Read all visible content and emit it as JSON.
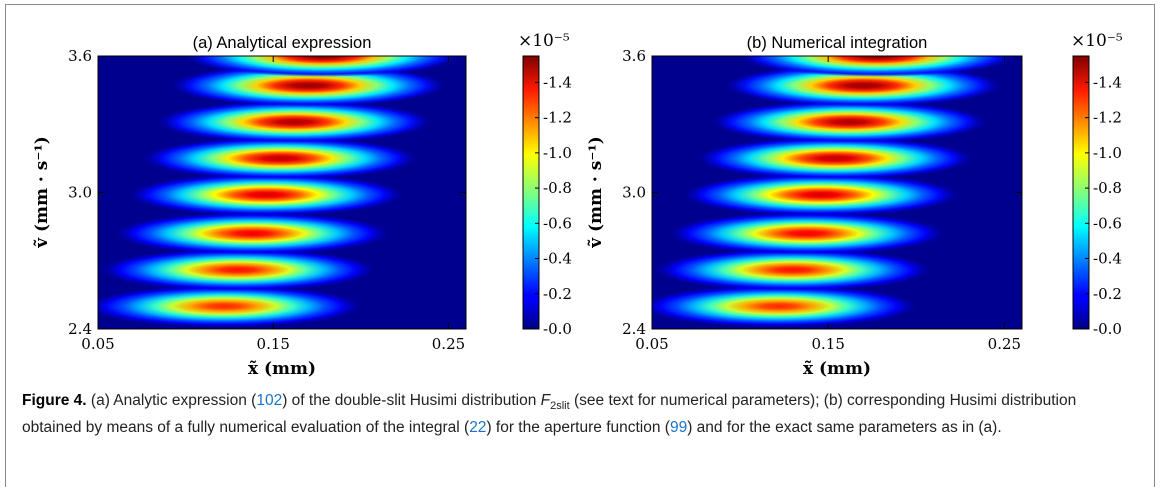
{
  "chart_data": [
    {
      "type": "heatmap",
      "title": "(a) Analytical expression",
      "xlabel": "x̃  (mm)",
      "ylabel": "ṽ  (mm · s⁻¹)",
      "xlim": [
        0.05,
        0.26
      ],
      "ylim": [
        2.4,
        3.6
      ],
      "xticks": [
        "0.05",
        "0.15",
        "0.25"
      ],
      "xtick_values": [
        0.05,
        0.15,
        0.25
      ],
      "yticks": [
        "2.4",
        "3.0",
        "3.6"
      ],
      "ytick_values": [
        2.4,
        3.0,
        3.6
      ],
      "colorbar": {
        "scale_label": "×10⁻⁵",
        "min": 0.0,
        "max": 1.55,
        "ticks": [
          "0.0",
          "0.2",
          "0.4",
          "0.6",
          "0.8",
          "1.0",
          "1.2",
          "1.4"
        ],
        "tick_values": [
          0.0,
          0.2,
          0.4,
          0.6,
          0.8,
          1.0,
          1.2,
          1.4
        ]
      },
      "blobs": [
        {
          "x": 0.122,
          "v": 2.5,
          "peak": 1.3
        },
        {
          "x": 0.13,
          "v": 2.66,
          "peak": 1.34
        },
        {
          "x": 0.138,
          "v": 2.82,
          "peak": 1.38
        },
        {
          "x": 0.146,
          "v": 2.99,
          "peak": 1.42
        },
        {
          "x": 0.154,
          "v": 3.15,
          "peak": 1.46
        },
        {
          "x": 0.162,
          "v": 3.31,
          "peak": 1.49
        },
        {
          "x": 0.17,
          "v": 3.47,
          "peak": 1.52
        },
        {
          "x": 0.178,
          "v": 3.6,
          "peak": 1.55
        }
      ],
      "blob_spread": {
        "x": 0.034,
        "v": 0.04
      }
    },
    {
      "type": "heatmap",
      "title": "(b) Numerical integration",
      "xlabel": "x̃  (mm)",
      "ylabel": "ṽ  (mm · s⁻¹)",
      "xlim": [
        0.05,
        0.26
      ],
      "ylim": [
        2.4,
        3.6
      ],
      "xticks": [
        "0.05",
        "0.15",
        "0.25"
      ],
      "xtick_values": [
        0.05,
        0.15,
        0.25
      ],
      "yticks": [
        "2.4",
        "3.0",
        "3.6"
      ],
      "ytick_values": [
        2.4,
        3.0,
        3.6
      ],
      "colorbar": {
        "scale_label": "×10⁻⁵",
        "min": 0.0,
        "max": 1.55,
        "ticks": [
          "0.0",
          "0.2",
          "0.4",
          "0.6",
          "0.8",
          "1.0",
          "1.2",
          "1.4"
        ],
        "tick_values": [
          0.0,
          0.2,
          0.4,
          0.6,
          0.8,
          1.0,
          1.2,
          1.4
        ]
      },
      "blobs": [
        {
          "x": 0.122,
          "v": 2.5,
          "peak": 1.3
        },
        {
          "x": 0.13,
          "v": 2.66,
          "peak": 1.34
        },
        {
          "x": 0.138,
          "v": 2.82,
          "peak": 1.38
        },
        {
          "x": 0.146,
          "v": 2.99,
          "peak": 1.42
        },
        {
          "x": 0.154,
          "v": 3.15,
          "peak": 1.46
        },
        {
          "x": 0.162,
          "v": 3.31,
          "peak": 1.49
        },
        {
          "x": 0.17,
          "v": 3.47,
          "peak": 1.52
        },
        {
          "x": 0.178,
          "v": 3.6,
          "peak": 1.55
        }
      ],
      "blob_spread": {
        "x": 0.034,
        "v": 0.04
      }
    }
  ],
  "caption": {
    "label": "Figure 4.",
    "t1": " (a) Analytic expression (",
    "r1": "102",
    "t2": ") of the double-slit Husimi distribution ",
    "f_main": "F",
    "f_sub": "2slit",
    "t3": " (see text for numerical parameters); (b) corresponding Husimi distribution obtained by means of a fully numerical evaluation of the integral (",
    "r2": "22",
    "t4": ") for the aperture function (",
    "r3": "99",
    "t5": ") and for the exact same parameters as in (a)."
  }
}
